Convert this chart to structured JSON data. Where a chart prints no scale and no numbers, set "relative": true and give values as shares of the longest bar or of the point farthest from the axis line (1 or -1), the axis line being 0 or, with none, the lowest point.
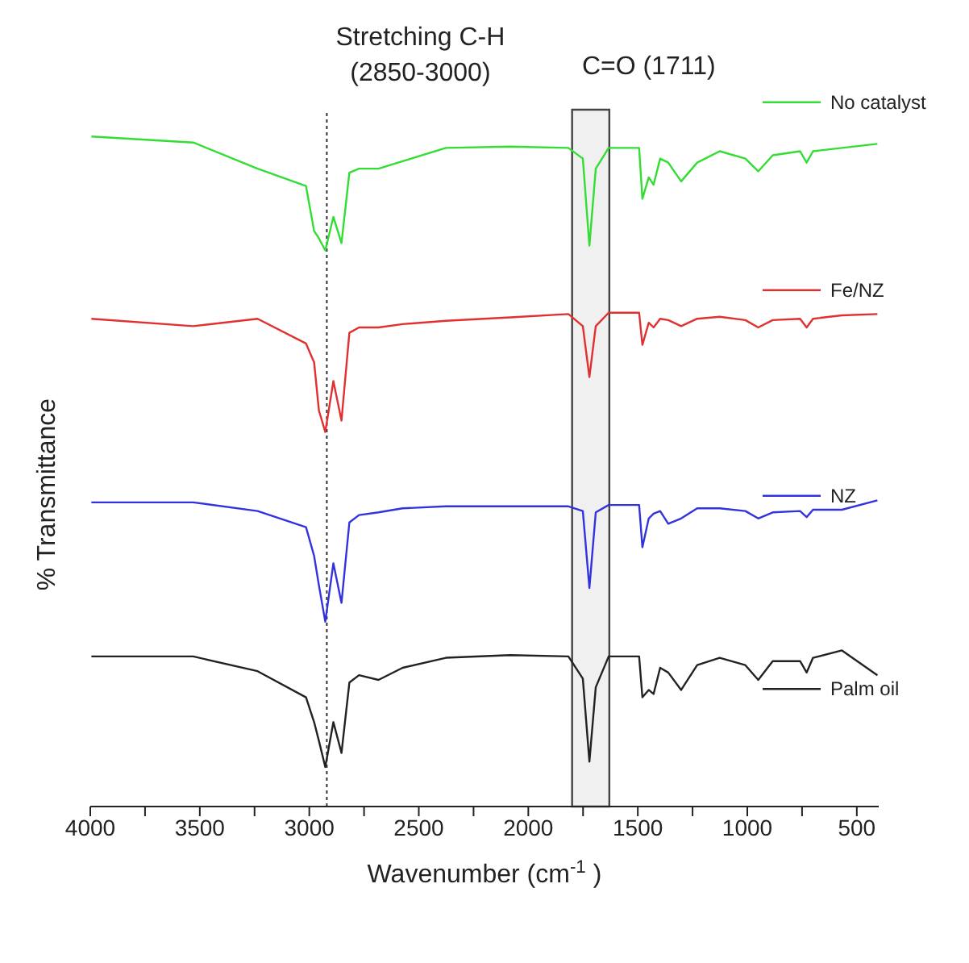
{
  "chart_data": {
    "type": "line",
    "relative": true,
    "xlabel": "Wavenumber (cm$^{-1}$)",
    "ylabel": "% Transmittance",
    "xlim": [
      4000,
      400
    ],
    "xticks": [
      4000,
      {
        "value": 3750,
        "label": null
      },
      3500,
      {
        "value": 3250,
        "label": null
      },
      3000,
      {
        "value": 2750,
        "label": null
      },
      2500,
      {
        "value": 2250,
        "label": null
      },
      2000,
      {
        "value": 1750,
        "label": null
      },
      1500,
      {
        "value": 1250,
        "label": null
      },
      1000,
      {
        "value": 750,
        "label": null
      },
      500
    ],
    "tick_labels": "x",
    "legend": "right",
    "marker": "none",
    "line_style": "solid",
    "x": [
      3995,
      3530,
      3236,
      3015,
      2978,
      2956,
      2927,
      2890,
      2853,
      2817,
      2773,
      2684,
      2574,
      2376,
      2082,
      1817,
      1751,
      1721,
      1692,
      1633,
      1494,
      1479,
      1450,
      1428,
      1398,
      1361,
      1302,
      1229,
      1126,
      1009,
      950,
      884,
      759,
      729,
      700,
      568,
      406
    ],
    "series": [
      {
        "name": "No catalyst",
        "color": "#33dd33",
        "values": [
          1,
          0.991,
          0.952,
          0.926,
          0.859,
          0.848,
          0.83,
          0.88,
          0.841,
          0.946,
          0.952,
          0.952,
          0.963,
          0.983,
          0.985,
          0.983,
          0.967,
          0.837,
          0.952,
          0.983,
          0.983,
          0.907,
          0.939,
          0.928,
          0.967,
          0.961,
          0.933,
          0.961,
          0.978,
          0.967,
          0.948,
          0.972,
          0.978,
          0.961,
          0.978,
          0.983,
          0.989
        ]
      },
      {
        "name": "Fe/NZ",
        "color": "#e03030",
        "values": [
          0.728,
          0.717,
          0.728,
          0.691,
          0.663,
          0.591,
          0.559,
          0.635,
          0.576,
          0.707,
          0.715,
          0.715,
          0.72,
          0.725,
          0.73,
          0.735,
          0.717,
          0.641,
          0.717,
          0.737,
          0.737,
          0.689,
          0.722,
          0.715,
          0.728,
          0.726,
          0.717,
          0.728,
          0.731,
          0.726,
          0.715,
          0.726,
          0.728,
          0.715,
          0.728,
          0.733,
          0.735
        ]
      },
      {
        "name": "NZ",
        "color": "#3333dd",
        "values": [
          0.454,
          0.454,
          0.441,
          0.417,
          0.374,
          0.33,
          0.276,
          0.363,
          0.304,
          0.424,
          0.435,
          0.439,
          0.445,
          0.448,
          0.448,
          0.448,
          0.441,
          0.326,
          0.439,
          0.45,
          0.45,
          0.387,
          0.43,
          0.437,
          0.441,
          0.422,
          0.43,
          0.445,
          0.445,
          0.441,
          0.43,
          0.439,
          0.441,
          0.432,
          0.443,
          0.443,
          0.457
        ]
      },
      {
        "name": "Palm oil",
        "color": "#222222",
        "values": [
          0.224,
          0.224,
          0.202,
          0.163,
          0.126,
          0.098,
          0.059,
          0.126,
          0.08,
          0.185,
          0.196,
          0.189,
          0.207,
          0.222,
          0.226,
          0.224,
          0.191,
          0.067,
          0.178,
          0.224,
          0.224,
          0.163,
          0.174,
          0.168,
          0.207,
          0.2,
          0.174,
          0.211,
          0.222,
          0.211,
          0.189,
          0.217,
          0.217,
          0.2,
          0.222,
          0.233,
          0.196
        ]
      }
    ],
    "ref_lines": [
      {
        "axis": "x",
        "value": 2920,
        "label": "Stretching C-H (2850-3000)",
        "line_style": "dotted",
        "color": "#333333"
      }
    ],
    "bands": [
      {
        "axis": "x",
        "from": 1800,
        "to": 1630,
        "label": "C=O (1711)",
        "color": "#444444"
      }
    ]
  }
}
